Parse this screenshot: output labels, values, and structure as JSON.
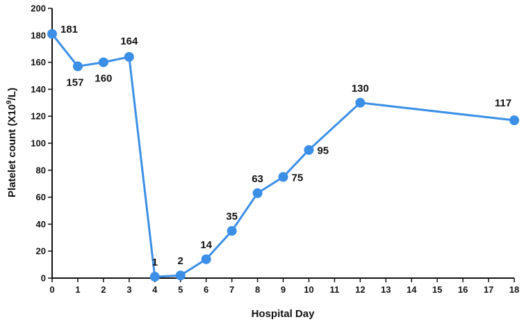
{
  "chart_data": {
    "type": "line",
    "title": "",
    "xlabel": "Hospital Day",
    "ylabel_main": "Platelet count (X10",
    "ylabel_sup": "9",
    "ylabel_tail": "/L)",
    "xlim": [
      0,
      18
    ],
    "ylim": [
      0,
      200
    ],
    "x_ticks": [
      0,
      1,
      2,
      3,
      4,
      5,
      6,
      7,
      8,
      9,
      10,
      11,
      12,
      13,
      14,
      15,
      16,
      17,
      18
    ],
    "y_ticks": [
      0,
      20,
      40,
      60,
      80,
      100,
      120,
      140,
      160,
      180,
      200
    ],
    "grid": false,
    "series": [
      {
        "color": "#3b8fe6",
        "x": [
          0,
          1,
          2,
          3,
          4,
          5,
          6,
          7,
          8,
          9,
          10,
          12,
          18
        ],
        "y": [
          181,
          157,
          160,
          164,
          1,
          2,
          14,
          35,
          63,
          75,
          95,
          130,
          117
        ],
        "labels": [
          "181",
          "157",
          "160",
          "164",
          "1",
          "2",
          "14",
          "35",
          "63",
          "75",
          "95",
          "130",
          "117"
        ]
      }
    ]
  }
}
